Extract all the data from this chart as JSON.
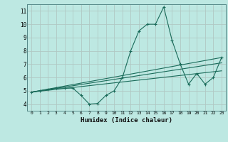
{
  "xlabel": "Humidex (Indice chaleur)",
  "bg_color": "#bde8e2",
  "grid_color": "#b0c8c4",
  "line_color": "#1a6b5a",
  "xlim": [
    -0.5,
    23.5
  ],
  "ylim": [
    3.5,
    11.5
  ],
  "xticks": [
    0,
    1,
    2,
    3,
    4,
    5,
    6,
    7,
    8,
    9,
    10,
    11,
    12,
    13,
    14,
    15,
    16,
    17,
    18,
    19,
    20,
    21,
    22,
    23
  ],
  "yticks": [
    4,
    5,
    6,
    7,
    8,
    9,
    10,
    11
  ],
  "series1_x": [
    0,
    1,
    2,
    3,
    4,
    5,
    6,
    7,
    8,
    9,
    10,
    11,
    12,
    13,
    14,
    15,
    16,
    17,
    18,
    19,
    20,
    21,
    22,
    23
  ],
  "series1_y": [
    4.9,
    5.0,
    5.1,
    5.2,
    5.2,
    5.2,
    4.65,
    4.0,
    4.05,
    4.65,
    5.0,
    6.0,
    8.0,
    9.5,
    10.0,
    10.0,
    11.3,
    8.8,
    7.0,
    5.5,
    6.3,
    5.5,
    6.0,
    7.5
  ],
  "series2_x": [
    0,
    23
  ],
  "series2_y": [
    4.9,
    7.5
  ],
  "series3_x": [
    0,
    23
  ],
  "series3_y": [
    4.9,
    7.1
  ],
  "series4_x": [
    0,
    23
  ],
  "series4_y": [
    4.9,
    6.5
  ]
}
